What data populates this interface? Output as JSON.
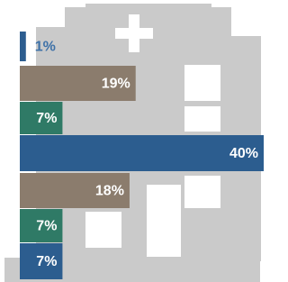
{
  "chart_data": {
    "type": "bar",
    "orientation": "horizontal",
    "values": [
      1,
      19,
      7,
      40,
      18,
      7,
      7
    ],
    "value_labels": [
      "1%",
      "19%",
      "7%",
      "40%",
      "18%",
      "7%",
      "7%"
    ],
    "colors": [
      "#2c5d8f",
      "#8b7c6d",
      "#2f7a66",
      "#2c5d8f",
      "#8b7c6d",
      "#2f7a66",
      "#2c5d8f"
    ]
  }
}
